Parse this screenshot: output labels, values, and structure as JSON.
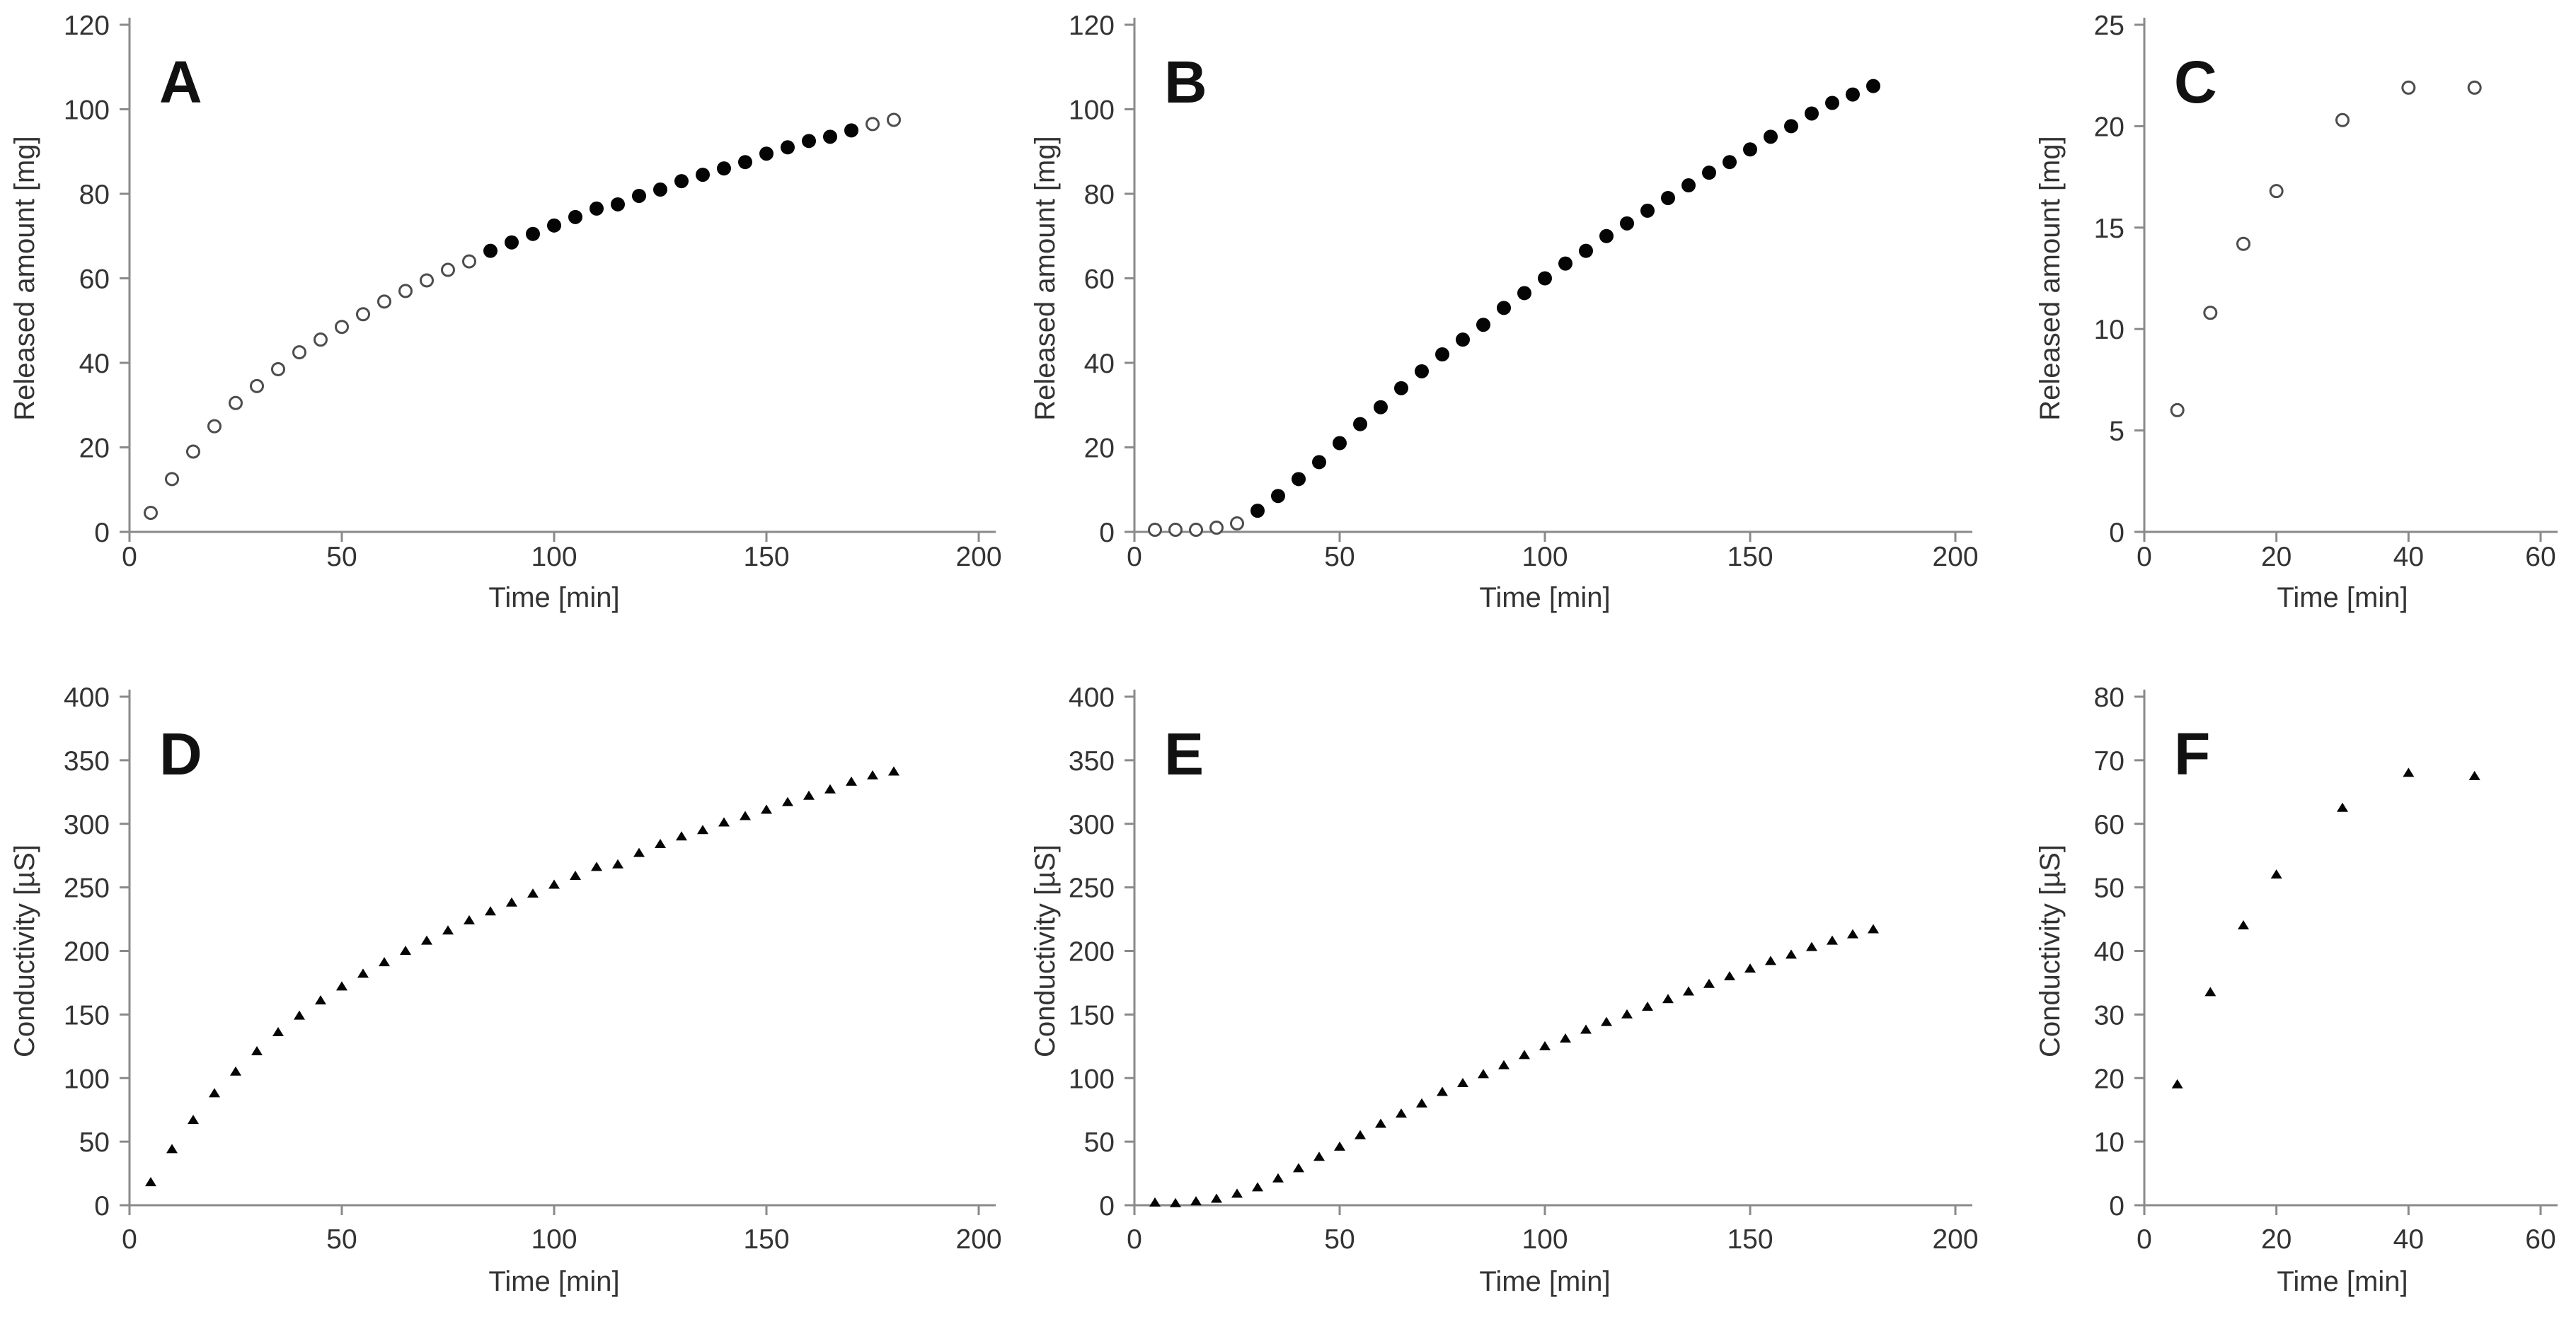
{
  "figure": {
    "background": "#ffffff",
    "colors": {
      "text": "#333333",
      "axis": "#8a8a8a",
      "marker_fill": "#050505",
      "marker_open_stroke": "#4d4d4d",
      "marker_open_fill": "#ffffff",
      "panel_letter": "#111111"
    }
  },
  "chart_data": [
    {
      "id": "a",
      "panel_label": "A",
      "type": "scatter",
      "xlabel": "Time [min]",
      "ylabel": "Released amount [mg]",
      "xlim": [
        0,
        200
      ],
      "ylim": [
        0,
        120
      ],
      "xticks": [
        0,
        50,
        100,
        150,
        200
      ],
      "yticks": [
        0,
        20,
        40,
        60,
        80,
        100,
        120
      ],
      "grid": false,
      "legend": "none",
      "series": [
        {
          "name": "release-open-circles-early",
          "marker": "circle-open",
          "points": [
            [
              5,
              4.5
            ],
            [
              10,
              12.5
            ],
            [
              15,
              19
            ],
            [
              20,
              25
            ],
            [
              25,
              30.5
            ],
            [
              30,
              34.5
            ],
            [
              35,
              38.5
            ],
            [
              40,
              42.5
            ],
            [
              45,
              45.5
            ],
            [
              50,
              48.5
            ],
            [
              55,
              51.5
            ],
            [
              60,
              54.5
            ],
            [
              65,
              57
            ],
            [
              70,
              59.5
            ],
            [
              75,
              62
            ],
            [
              80,
              64
            ]
          ]
        },
        {
          "name": "release-filled-circles",
          "marker": "circle-filled",
          "points": [
            [
              85,
              66.5
            ],
            [
              90,
              68.5
            ],
            [
              95,
              70.5
            ],
            [
              100,
              72.5
            ],
            [
              105,
              74.5
            ],
            [
              110,
              76.5
            ],
            [
              115,
              77.5
            ],
            [
              120,
              79.5
            ],
            [
              125,
              81
            ],
            [
              130,
              83
            ],
            [
              135,
              84.5
            ],
            [
              140,
              86
            ],
            [
              145,
              87.5
            ],
            [
              150,
              89.5
            ],
            [
              155,
              91
            ],
            [
              160,
              92.5
            ],
            [
              165,
              93.5
            ],
            [
              170,
              95
            ]
          ]
        },
        {
          "name": "release-open-circles-late",
          "marker": "circle-open",
          "points": [
            [
              175,
              96.5
            ],
            [
              180,
              97.5
            ]
          ]
        }
      ]
    },
    {
      "id": "b",
      "panel_label": "B",
      "type": "scatter",
      "xlabel": "Time [min]",
      "ylabel": "Released amount [mg]",
      "xlim": [
        0,
        200
      ],
      "ylim": [
        0,
        120
      ],
      "xticks": [
        0,
        50,
        100,
        150,
        200
      ],
      "yticks": [
        0,
        20,
        40,
        60,
        80,
        100,
        120
      ],
      "grid": false,
      "legend": "none",
      "series": [
        {
          "name": "release-open-circles-lag",
          "marker": "circle-open",
          "points": [
            [
              5,
              0.5
            ],
            [
              10,
              0.5
            ],
            [
              15,
              0.5
            ],
            [
              20,
              1
            ],
            [
              25,
              2
            ]
          ]
        },
        {
          "name": "release-filled-circles",
          "marker": "circle-filled",
          "points": [
            [
              30,
              5
            ],
            [
              35,
              8.5
            ],
            [
              40,
              12.5
            ],
            [
              45,
              16.5
            ],
            [
              50,
              21
            ],
            [
              55,
              25.5
            ],
            [
              60,
              29.5
            ],
            [
              65,
              34
            ],
            [
              70,
              38
            ],
            [
              75,
              42
            ],
            [
              80,
              45.5
            ],
            [
              85,
              49
            ],
            [
              90,
              53
            ],
            [
              95,
              56.5
            ],
            [
              100,
              60
            ],
            [
              105,
              63.5
            ],
            [
              110,
              66.5
            ],
            [
              115,
              70
            ],
            [
              120,
              73
            ],
            [
              125,
              76
            ],
            [
              130,
              79
            ],
            [
              135,
              82
            ],
            [
              140,
              85
            ],
            [
              145,
              87.5
            ],
            [
              150,
              90.5
            ],
            [
              155,
              93.5
            ],
            [
              160,
              96
            ],
            [
              165,
              99
            ],
            [
              170,
              101.5
            ],
            [
              175,
              103.5
            ],
            [
              180,
              105.5
            ]
          ]
        }
      ]
    },
    {
      "id": "c",
      "panel_label": "C",
      "type": "scatter",
      "xlabel": "Time [min]",
      "ylabel": "Released amount [mg]",
      "xlim": [
        0,
        60
      ],
      "ylim": [
        0,
        25
      ],
      "xticks": [
        0,
        20,
        40,
        60
      ],
      "yticks": [
        0,
        5,
        10,
        15,
        20,
        25
      ],
      "grid": false,
      "legend": "none",
      "series": [
        {
          "name": "release-open-circles",
          "marker": "circle-open",
          "points": [
            [
              5,
              6
            ],
            [
              10,
              10.8
            ],
            [
              15,
              14.2
            ],
            [
              20,
              16.8
            ],
            [
              30,
              20.3
            ],
            [
              40,
              21.9
            ],
            [
              50,
              21.9
            ]
          ]
        }
      ]
    },
    {
      "id": "d",
      "panel_label": "D",
      "type": "scatter",
      "xlabel": "Time [min]",
      "ylabel": "Conductivity [µS]",
      "xlim": [
        0,
        200
      ],
      "ylim": [
        0,
        400
      ],
      "xticks": [
        0,
        50,
        100,
        150,
        200
      ],
      "yticks": [
        0,
        50,
        100,
        150,
        200,
        250,
        300,
        350,
        400
      ],
      "grid": false,
      "legend": "none",
      "series": [
        {
          "name": "conductivity-triangles",
          "marker": "triangle-filled",
          "points": [
            [
              5,
              18
            ],
            [
              10,
              44
            ],
            [
              15,
              67
            ],
            [
              20,
              88
            ],
            [
              25,
              105
            ],
            [
              30,
              121
            ],
            [
              35,
              136
            ],
            [
              40,
              149
            ],
            [
              45,
              161
            ],
            [
              50,
              172
            ],
            [
              55,
              182
            ],
            [
              60,
              191
            ],
            [
              65,
              200
            ],
            [
              70,
              208
            ],
            [
              75,
              216
            ],
            [
              80,
              224
            ],
            [
              85,
              231
            ],
            [
              90,
              238
            ],
            [
              95,
              245
            ],
            [
              100,
              252
            ],
            [
              105,
              259
            ],
            [
              110,
              266
            ],
            [
              115,
              268
            ],
            [
              120,
              277
            ],
            [
              125,
              284
            ],
            [
              130,
              290
            ],
            [
              135,
              295
            ],
            [
              140,
              301
            ],
            [
              145,
              306
            ],
            [
              150,
              311
            ],
            [
              155,
              317
            ],
            [
              160,
              322
            ],
            [
              165,
              327
            ],
            [
              170,
              333
            ],
            [
              175,
              338
            ],
            [
              180,
              341
            ]
          ]
        }
      ]
    },
    {
      "id": "e",
      "panel_label": "E",
      "type": "scatter",
      "xlabel": "Time [min]",
      "ylabel": "Conductivity [µS]",
      "xlim": [
        0,
        200
      ],
      "ylim": [
        0,
        400
      ],
      "xticks": [
        0,
        50,
        100,
        150,
        200
      ],
      "yticks": [
        0,
        50,
        100,
        150,
        200,
        250,
        300,
        350,
        400
      ],
      "grid": false,
      "legend": "none",
      "series": [
        {
          "name": "conductivity-triangles",
          "marker": "triangle-filled",
          "points": [
            [
              5,
              2
            ],
            [
              10,
              1.5
            ],
            [
              15,
              3
            ],
            [
              20,
              5
            ],
            [
              25,
              9
            ],
            [
              30,
              14
            ],
            [
              35,
              21
            ],
            [
              40,
              29
            ],
            [
              45,
              38
            ],
            [
              50,
              46
            ],
            [
              55,
              55
            ],
            [
              60,
              64
            ],
            [
              65,
              72
            ],
            [
              70,
              80
            ],
            [
              75,
              89
            ],
            [
              80,
              96
            ],
            [
              85,
              103
            ],
            [
              90,
              110
            ],
            [
              95,
              118
            ],
            [
              100,
              125
            ],
            [
              105,
              131
            ],
            [
              110,
              138
            ],
            [
              115,
              144
            ],
            [
              120,
              150
            ],
            [
              125,
              156
            ],
            [
              130,
              162
            ],
            [
              135,
              168
            ],
            [
              140,
              174
            ],
            [
              145,
              180
            ],
            [
              150,
              186
            ],
            [
              155,
              192
            ],
            [
              160,
              197
            ],
            [
              165,
              203
            ],
            [
              170,
              208
            ],
            [
              175,
              213
            ],
            [
              180,
              217
            ]
          ]
        }
      ]
    },
    {
      "id": "f",
      "panel_label": "F",
      "type": "scatter",
      "xlabel": "Time [min]",
      "ylabel": "Conductivity [µS]",
      "xlim": [
        0,
        60
      ],
      "ylim": [
        0,
        80
      ],
      "xticks": [
        0,
        20,
        40,
        60
      ],
      "yticks": [
        0,
        10,
        20,
        30,
        40,
        50,
        60,
        70,
        80
      ],
      "grid": false,
      "legend": "none",
      "series": [
        {
          "name": "conductivity-triangles",
          "marker": "triangle-filled",
          "points": [
            [
              5,
              19
            ],
            [
              10,
              33.5
            ],
            [
              15,
              44
            ],
            [
              20,
              52
            ],
            [
              30,
              62.5
            ],
            [
              40,
              68
            ],
            [
              50,
              67.5
            ]
          ]
        }
      ]
    }
  ]
}
